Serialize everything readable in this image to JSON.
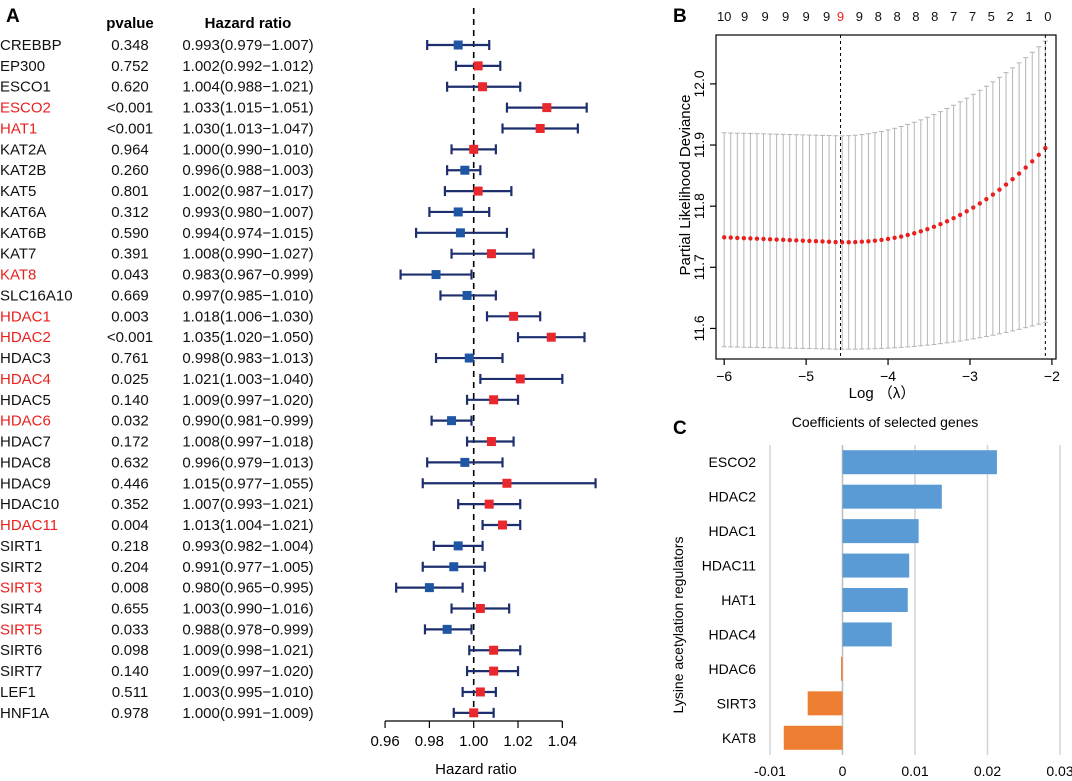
{
  "panel_labels": {
    "a": "A",
    "b": "B",
    "c": "C"
  },
  "colors": {
    "significant_text": "#e8211f",
    "normal_text": "#111111",
    "hr_gt_one": "#e8282d",
    "hr_lt_one": "#1f56a4",
    "ci_line": "#1c2e6e",
    "cv_points": "#e8211f",
    "cv_bars": "#b4b4b4",
    "bar_positive": "#5b9bd5",
    "bar_negative": "#ed7d31",
    "grid": "#d4d4d4"
  },
  "chart_data": [
    {
      "type": "forest",
      "panel": "A",
      "col_header_pvalue": "pvalue",
      "col_header_hr": "Hazard ratio",
      "xlabel": "Hazard ratio",
      "xlim": [
        0.955,
        1.057
      ],
      "xticks": [
        "0.96",
        "0.98",
        "1.00",
        "1.02",
        "1.04"
      ],
      "reference_line": 1.0,
      "rows": [
        {
          "gene": "CREBBP",
          "pvalue": "0.348",
          "hr_text": "0.993(0.979−1.007)",
          "hr": 0.993,
          "lo": 0.979,
          "hi": 1.007,
          "sig": false
        },
        {
          "gene": "EP300",
          "pvalue": "0.752",
          "hr_text": "1.002(0.992−1.012)",
          "hr": 1.002,
          "lo": 0.992,
          "hi": 1.012,
          "sig": false
        },
        {
          "gene": "ESCO1",
          "pvalue": "0.620",
          "hr_text": "1.004(0.988−1.021)",
          "hr": 1.004,
          "lo": 0.988,
          "hi": 1.021,
          "sig": false
        },
        {
          "gene": "ESCO2",
          "pvalue": "<0.001",
          "hr_text": "1.033(1.015−1.051)",
          "hr": 1.033,
          "lo": 1.015,
          "hi": 1.051,
          "sig": true
        },
        {
          "gene": "HAT1",
          "pvalue": "<0.001",
          "hr_text": "1.030(1.013−1.047)",
          "hr": 1.03,
          "lo": 1.013,
          "hi": 1.047,
          "sig": true
        },
        {
          "gene": "KAT2A",
          "pvalue": "0.964",
          "hr_text": "1.000(0.990−1.010)",
          "hr": 1.0,
          "lo": 0.99,
          "hi": 1.01,
          "sig": false
        },
        {
          "gene": "KAT2B",
          "pvalue": "0.260",
          "hr_text": "0.996(0.988−1.003)",
          "hr": 0.996,
          "lo": 0.988,
          "hi": 1.003,
          "sig": false
        },
        {
          "gene": "KAT5",
          "pvalue": "0.801",
          "hr_text": "1.002(0.987−1.017)",
          "hr": 1.002,
          "lo": 0.987,
          "hi": 1.017,
          "sig": false
        },
        {
          "gene": "KAT6A",
          "pvalue": "0.312",
          "hr_text": "0.993(0.980−1.007)",
          "hr": 0.993,
          "lo": 0.98,
          "hi": 1.007,
          "sig": false
        },
        {
          "gene": "KAT6B",
          "pvalue": "0.590",
          "hr_text": "0.994(0.974−1.015)",
          "hr": 0.994,
          "lo": 0.974,
          "hi": 1.015,
          "sig": false
        },
        {
          "gene": "KAT7",
          "pvalue": "0.391",
          "hr_text": "1.008(0.990−1.027)",
          "hr": 1.008,
          "lo": 0.99,
          "hi": 1.027,
          "sig": false
        },
        {
          "gene": "KAT8",
          "pvalue": "0.043",
          "hr_text": "0.983(0.967−0.999)",
          "hr": 0.983,
          "lo": 0.967,
          "hi": 0.999,
          "sig": true
        },
        {
          "gene": "SLC16A10",
          "pvalue": "0.669",
          "hr_text": "0.997(0.985−1.010)",
          "hr": 0.997,
          "lo": 0.985,
          "hi": 1.01,
          "sig": false
        },
        {
          "gene": "HDAC1",
          "pvalue": "0.003",
          "hr_text": "1.018(1.006−1.030)",
          "hr": 1.018,
          "lo": 1.006,
          "hi": 1.03,
          "sig": true
        },
        {
          "gene": "HDAC2",
          "pvalue": "<0.001",
          "hr_text": "1.035(1.020−1.050)",
          "hr": 1.035,
          "lo": 1.02,
          "hi": 1.05,
          "sig": true
        },
        {
          "gene": "HDAC3",
          "pvalue": "0.761",
          "hr_text": "0.998(0.983−1.013)",
          "hr": 0.998,
          "lo": 0.983,
          "hi": 1.013,
          "sig": false
        },
        {
          "gene": "HDAC4",
          "pvalue": "0.025",
          "hr_text": "1.021(1.003−1.040)",
          "hr": 1.021,
          "lo": 1.003,
          "hi": 1.04,
          "sig": true
        },
        {
          "gene": "HDAC5",
          "pvalue": "0.140",
          "hr_text": "1.009(0.997−1.020)",
          "hr": 1.009,
          "lo": 0.997,
          "hi": 1.02,
          "sig": false
        },
        {
          "gene": "HDAC6",
          "pvalue": "0.032",
          "hr_text": "0.990(0.981−0.999)",
          "hr": 0.99,
          "lo": 0.981,
          "hi": 0.999,
          "sig": true
        },
        {
          "gene": "HDAC7",
          "pvalue": "0.172",
          "hr_text": "1.008(0.997−1.018)",
          "hr": 1.008,
          "lo": 0.997,
          "hi": 1.018,
          "sig": false
        },
        {
          "gene": "HDAC8",
          "pvalue": "0.632",
          "hr_text": "0.996(0.979−1.013)",
          "hr": 0.996,
          "lo": 0.979,
          "hi": 1.013,
          "sig": false
        },
        {
          "gene": "HDAC9",
          "pvalue": "0.446",
          "hr_text": "1.015(0.977−1.055)",
          "hr": 1.015,
          "lo": 0.977,
          "hi": 1.055,
          "sig": false
        },
        {
          "gene": "HDAC10",
          "pvalue": "0.352",
          "hr_text": "1.007(0.993−1.021)",
          "hr": 1.007,
          "lo": 0.993,
          "hi": 1.021,
          "sig": false
        },
        {
          "gene": "HDAC11",
          "pvalue": "0.004",
          "hr_text": "1.013(1.004−1.021)",
          "hr": 1.013,
          "lo": 1.004,
          "hi": 1.021,
          "sig": true
        },
        {
          "gene": "SIRT1",
          "pvalue": "0.218",
          "hr_text": "0.993(0.982−1.004)",
          "hr": 0.993,
          "lo": 0.982,
          "hi": 1.004,
          "sig": false
        },
        {
          "gene": "SIRT2",
          "pvalue": "0.204",
          "hr_text": "0.991(0.977−1.005)",
          "hr": 0.991,
          "lo": 0.977,
          "hi": 1.005,
          "sig": false
        },
        {
          "gene": "SIRT3",
          "pvalue": "0.008",
          "hr_text": "0.980(0.965−0.995)",
          "hr": 0.98,
          "lo": 0.965,
          "hi": 0.995,
          "sig": true
        },
        {
          "gene": "SIRT4",
          "pvalue": "0.655",
          "hr_text": "1.003(0.990−1.016)",
          "hr": 1.003,
          "lo": 0.99,
          "hi": 1.016,
          "sig": false
        },
        {
          "gene": "SIRT5",
          "pvalue": "0.033",
          "hr_text": "0.988(0.978−0.999)",
          "hr": 0.988,
          "lo": 0.978,
          "hi": 0.999,
          "sig": true
        },
        {
          "gene": "SIRT6",
          "pvalue": "0.098",
          "hr_text": "1.009(0.998−1.021)",
          "hr": 1.009,
          "lo": 0.998,
          "hi": 1.021,
          "sig": false
        },
        {
          "gene": "SIRT7",
          "pvalue": "0.140",
          "hr_text": "1.009(0.997−1.020)",
          "hr": 1.009,
          "lo": 0.997,
          "hi": 1.02,
          "sig": false
        },
        {
          "gene": "LEF1",
          "pvalue": "0.511",
          "hr_text": "1.003(0.995−1.010)",
          "hr": 1.003,
          "lo": 0.995,
          "hi": 1.01,
          "sig": false
        },
        {
          "gene": "HNF1A",
          "pvalue": "0.978",
          "hr_text": "1.000(0.991−1.009)",
          "hr": 1.0,
          "lo": 0.991,
          "hi": 1.009,
          "sig": false
        }
      ]
    },
    {
      "type": "line",
      "panel": "B",
      "xlabel": "Log （λ）",
      "ylabel": "Partial Likelihood Deviance",
      "xlim": [
        -6.1,
        -1.95
      ],
      "ylim": [
        11.55,
        12.08
      ],
      "xticks": [
        -6,
        -5,
        -4,
        -3,
        -2
      ],
      "yticks": [
        11.6,
        11.7,
        11.8,
        11.9,
        12.0
      ],
      "top_labels": [
        {
          "x": -6.0,
          "label": "10"
        },
        {
          "x": -5.75,
          "label": "9"
        },
        {
          "x": -5.5,
          "label": "9"
        },
        {
          "x": -5.25,
          "label": "9"
        },
        {
          "x": -5.0,
          "label": "9"
        },
        {
          "x": -4.75,
          "label": "9"
        },
        {
          "x": -4.58,
          "label": "9",
          "highlight": true
        },
        {
          "x": -4.35,
          "label": "9"
        },
        {
          "x": -4.12,
          "label": "8"
        },
        {
          "x": -3.89,
          "label": "8"
        },
        {
          "x": -3.66,
          "label": "8"
        },
        {
          "x": -3.43,
          "label": "8"
        },
        {
          "x": -3.2,
          "label": "7"
        },
        {
          "x": -2.97,
          "label": "7"
        },
        {
          "x": -2.74,
          "label": "5"
        },
        {
          "x": -2.51,
          "label": "2"
        },
        {
          "x": -2.28,
          "label": "1"
        },
        {
          "x": -2.05,
          "label": "0"
        }
      ],
      "vlines": [
        -4.58,
        -2.08
      ],
      "curve": {
        "x_start": -6.0,
        "x_end": -2.08,
        "n_points": 50,
        "min_x": -4.58,
        "min_y": 11.741,
        "left_y": 11.749,
        "right_y": 11.895,
        "band_left_upper": 11.92,
        "band_left_lower": 11.57,
        "band_right_upper": 12.07,
        "band_right_lower": 11.61
      }
    },
    {
      "type": "bar",
      "panel": "C",
      "orientation": "horizontal",
      "title": "Coefficients of selected genes",
      "ylabel": "Lysine acetylation regulators",
      "xlim": [
        -0.01,
        0.03
      ],
      "xticks": [
        "-0.01",
        "0",
        "0.01",
        "0.02",
        "0.03"
      ],
      "xtick_values": [
        -0.01,
        0,
        0.01,
        0.02,
        0.03
      ],
      "categories": [
        "ESCO2",
        "HDAC2",
        "HDAC1",
        "HDAC11",
        "HAT1",
        "HDAC4",
        "HDAC6",
        "SIRT3",
        "KAT8"
      ],
      "values": [
        0.0213,
        0.0137,
        0.0105,
        0.0092,
        0.009,
        0.0068,
        -0.0002,
        -0.0048,
        -0.0081
      ]
    }
  ]
}
